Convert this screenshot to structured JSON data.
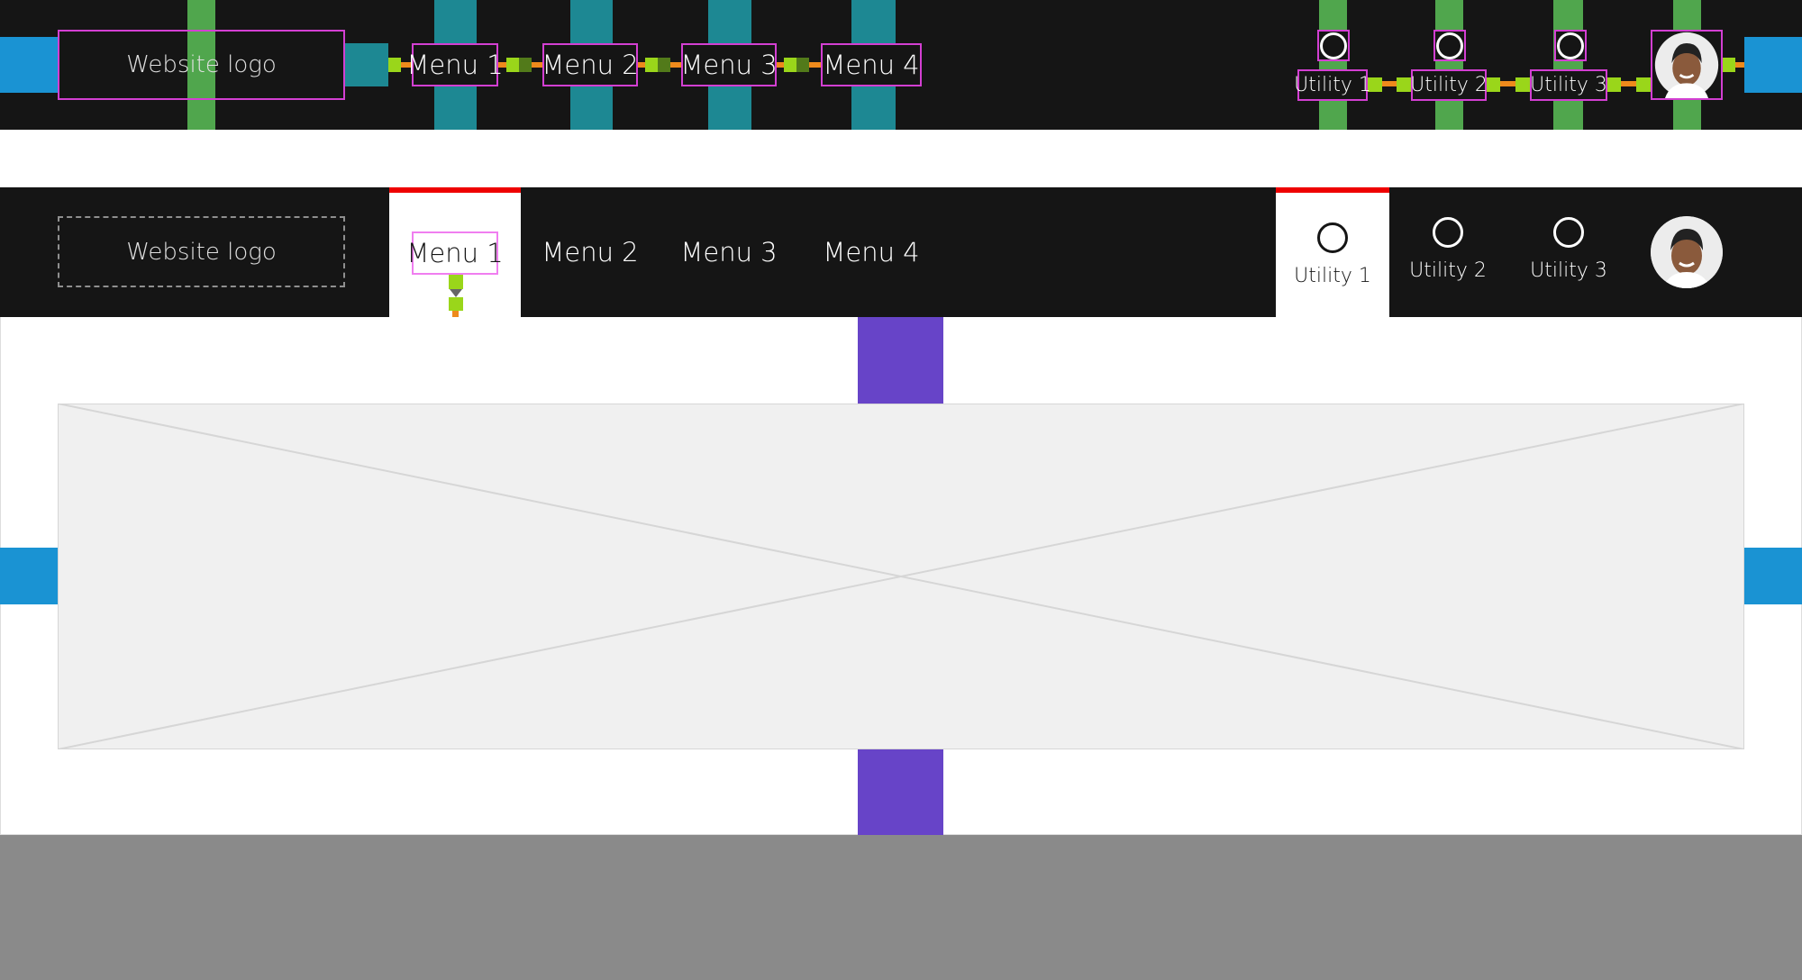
{
  "annotated_header": {
    "logo": "Website logo",
    "menu": [
      "Menu 1",
      "Menu 2",
      "Menu 3",
      "Menu 4"
    ],
    "utilities": [
      "Utility 1",
      "Utility 2",
      "Utility 3"
    ]
  },
  "header": {
    "logo": "Website logo",
    "menu": [
      "Menu 1",
      "Menu 2",
      "Menu 3",
      "Menu 4"
    ],
    "active_menu": "Menu 1",
    "utilities": [
      "Utility 1",
      "Utility 2",
      "Utility 3"
    ],
    "active_utility": "Utility 1",
    "icons": {
      "utility": "circle-icon",
      "avatar": "user-avatar"
    }
  },
  "colors": {
    "bar": "#151515",
    "active_indicator": "#ee0000",
    "spacing_blue": "#1a93d3",
    "spacing_teal": "#1d8893",
    "spacing_green": "#50a64d",
    "spacing_purple": "#6744c8",
    "placeholder": "#f0f0f0",
    "footer": "#8a8a8a"
  }
}
